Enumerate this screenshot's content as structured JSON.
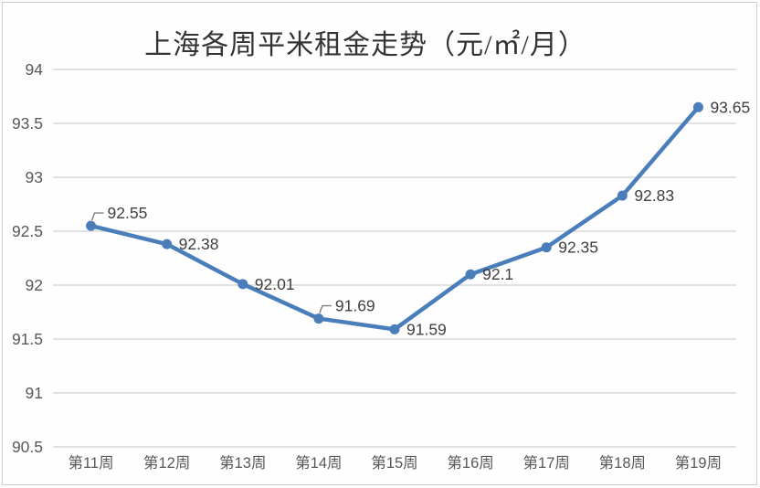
{
  "chart_data": {
    "type": "line",
    "title": "上海各周平米租金走势（元/㎡/月）",
    "categories": [
      "第11周",
      "第12周",
      "第13周",
      "第14周",
      "第15周",
      "第16周",
      "第17周",
      "第18周",
      "第19周"
    ],
    "values": [
      92.55,
      92.38,
      92.01,
      91.69,
      91.59,
      92.1,
      92.35,
      92.83,
      93.65
    ],
    "point_labels": [
      "92.55",
      "92.38",
      "92.01",
      "91.69",
      "91.59",
      "92.1",
      "92.35",
      "92.83",
      "93.65"
    ],
    "label_positions": [
      "callout-above",
      "right",
      "right",
      "callout-above",
      "right",
      "right",
      "right",
      "right",
      "right"
    ],
    "xlabel": "",
    "ylabel": "",
    "ylim": [
      90.5,
      94
    ],
    "ytick_step": 0.5,
    "ytick_labels": [
      "94",
      "93.5",
      "93",
      "92.5",
      "92",
      "91.5",
      "91",
      "90.5"
    ],
    "grid": true,
    "legend": "none",
    "colors": {
      "line": "#4a7ebb",
      "marker": "#4a7ebb",
      "gridline": "#d9d9d9",
      "leader": "#808080",
      "tick_label": "#595959",
      "data_label": "#3f3f3f",
      "title": "#333333",
      "background": "#fefefe",
      "frame_border": "#cccccc"
    }
  }
}
